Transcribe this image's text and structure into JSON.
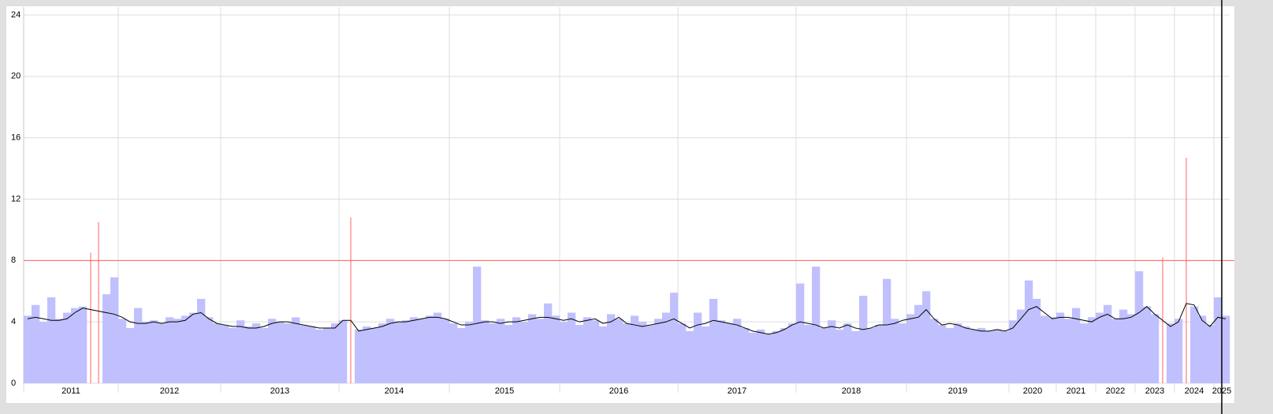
{
  "chart_data": {
    "type": "bar",
    "categories": [
      "2011",
      "2011",
      "2011",
      "2011",
      "2011",
      "2011",
      "2011",
      "2011",
      "2011",
      "2011",
      "2011",
      "2011",
      "2012",
      "2012",
      "2012",
      "2012",
      "2012",
      "2012",
      "2012",
      "2012",
      "2012",
      "2012",
      "2012",
      "2012",
      "2012",
      "2013",
      "2013",
      "2013",
      "2013",
      "2013",
      "2013",
      "2013",
      "2013",
      "2013",
      "2013",
      "2013",
      "2013",
      "2013",
      "2013",
      "2013",
      "2014",
      "2014",
      "2014",
      "2014",
      "2014",
      "2014",
      "2014",
      "2014",
      "2014",
      "2014",
      "2014",
      "2014",
      "2014",
      "2014",
      "2015",
      "2015",
      "2015",
      "2015",
      "2015",
      "2015",
      "2015",
      "2015",
      "2015",
      "2015",
      "2015",
      "2015",
      "2015",
      "2015",
      "2016",
      "2016",
      "2016",
      "2016",
      "2016",
      "2016",
      "2016",
      "2016",
      "2016",
      "2016",
      "2016",
      "2016",
      "2016",
      "2016",
      "2016",
      "2017",
      "2017",
      "2017",
      "2017",
      "2017",
      "2017",
      "2017",
      "2017",
      "2017",
      "2017",
      "2017",
      "2017",
      "2017",
      "2017",
      "2017",
      "2018",
      "2018",
      "2018",
      "2018",
      "2018",
      "2018",
      "2018",
      "2018",
      "2018",
      "2018",
      "2018",
      "2018",
      "2018",
      "2018",
      "2019",
      "2019",
      "2019",
      "2019",
      "2019",
      "2019",
      "2019",
      "2019",
      "2019",
      "2019",
      "2019",
      "2019",
      "2019",
      "2020",
      "2020",
      "2020",
      "2020",
      "2020",
      "2020",
      "2021",
      "2021",
      "2021",
      "2021",
      "2021",
      "2022",
      "2022",
      "2022",
      "2022",
      "2022",
      "2023",
      "2023",
      "2023",
      "2023",
      "2023",
      "2024",
      "2024",
      "2024",
      "2024",
      "2024",
      "2025",
      "2025"
    ],
    "series": [
      {
        "type": "bar",
        "color": "#c0c0ff",
        "values": [
          4.4,
          5.1,
          4.0,
          5.6,
          4.2,
          4.6,
          4.9,
          5.0,
          8.5,
          10.5,
          5.8,
          6.9,
          4.2,
          3.6,
          4.9,
          4.0,
          4.1,
          3.9,
          4.3,
          4.2,
          4.4,
          4.6,
          5.5,
          4.3,
          3.9,
          3.8,
          3.6,
          4.1,
          3.7,
          3.9,
          3.6,
          4.2,
          4.0,
          3.9,
          4.3,
          3.8,
          3.7,
          3.5,
          3.6,
          3.9,
          4.1,
          10.8,
          3.5,
          3.7,
          3.6,
          3.9,
          4.2,
          4.0,
          4.1,
          4.3,
          4.2,
          4.4,
          4.6,
          4.2,
          3.9,
          3.6,
          4.0,
          7.6,
          4.1,
          3.9,
          4.2,
          3.8,
          4.3,
          4.0,
          4.5,
          4.2,
          5.2,
          4.4,
          4.0,
          4.6,
          3.8,
          4.3,
          4.1,
          3.7,
          4.5,
          4.2,
          3.9,
          4.4,
          4.0,
          3.8,
          4.2,
          4.6,
          5.9,
          3.9,
          3.4,
          4.6,
          3.7,
          5.5,
          4.1,
          3.9,
          4.2,
          3.6,
          3.3,
          3.5,
          3.2,
          3.4,
          3.6,
          3.9,
          6.5,
          3.8,
          7.6,
          3.6,
          4.1,
          3.5,
          3.9,
          3.4,
          5.7,
          3.6,
          3.8,
          6.8,
          4.2,
          3.9,
          4.5,
          5.1,
          6.0,
          4.2,
          3.8,
          3.6,
          3.9,
          3.7,
          3.5,
          3.6,
          3.4,
          3.5,
          3.4,
          4.1,
          4.8,
          6.7,
          5.5,
          4.4,
          4.3,
          4.6,
          4.2,
          4.9,
          3.9,
          4.3,
          4.6,
          5.1,
          4.2,
          4.8,
          4.5,
          7.3,
          5.0,
          4.5,
          8.2,
          3.9,
          4.2,
          14.7,
          5.0,
          4.4,
          3.8,
          5.6,
          4.4
        ]
      },
      {
        "type": "line",
        "color": "#000000",
        "values": [
          4.2,
          4.3,
          4.2,
          4.1,
          4.1,
          4.2,
          4.6,
          4.9,
          4.8,
          4.7,
          4.6,
          4.5,
          4.3,
          4.0,
          3.9,
          3.9,
          4.0,
          3.9,
          4.0,
          4.0,
          4.1,
          4.5,
          4.6,
          4.2,
          3.9,
          3.8,
          3.7,
          3.7,
          3.6,
          3.6,
          3.7,
          3.9,
          4.0,
          4.0,
          3.9,
          3.8,
          3.7,
          3.6,
          3.6,
          3.6,
          4.1,
          4.1,
          3.4,
          3.5,
          3.6,
          3.7,
          3.9,
          4.0,
          4.0,
          4.1,
          4.2,
          4.3,
          4.3,
          4.2,
          4.0,
          3.8,
          3.8,
          3.9,
          4.0,
          4.0,
          3.9,
          4.0,
          4.0,
          4.1,
          4.2,
          4.3,
          4.3,
          4.2,
          4.1,
          4.2,
          4.0,
          4.1,
          4.2,
          3.9,
          4.0,
          4.3,
          3.9,
          3.8,
          3.7,
          3.8,
          3.9,
          4.0,
          4.2,
          3.9,
          3.6,
          3.8,
          3.9,
          4.1,
          4.0,
          3.9,
          3.8,
          3.6,
          3.4,
          3.3,
          3.2,
          3.3,
          3.5,
          3.8,
          4.0,
          3.9,
          3.8,
          3.6,
          3.7,
          3.6,
          3.8,
          3.6,
          3.5,
          3.6,
          3.8,
          3.8,
          3.9,
          4.1,
          4.2,
          4.3,
          4.8,
          4.2,
          3.8,
          3.9,
          3.8,
          3.6,
          3.5,
          3.4,
          3.4,
          3.5,
          3.4,
          3.6,
          4.2,
          4.8,
          5.0,
          4.6,
          4.2,
          4.3,
          4.3,
          4.2,
          4.1,
          4.0,
          4.3,
          4.5,
          4.2,
          4.2,
          4.3,
          4.6,
          5.0,
          4.5,
          4.1,
          3.7,
          4.0,
          5.2,
          5.1,
          4.1,
          3.7,
          4.3,
          4.2
        ]
      }
    ],
    "threshold": 8,
    "threshold_color": "#ff6060",
    "ylim": [
      0,
      24
    ],
    "yticks": [
      0,
      4,
      8,
      12,
      16,
      20,
      24
    ],
    "grid": true
  }
}
